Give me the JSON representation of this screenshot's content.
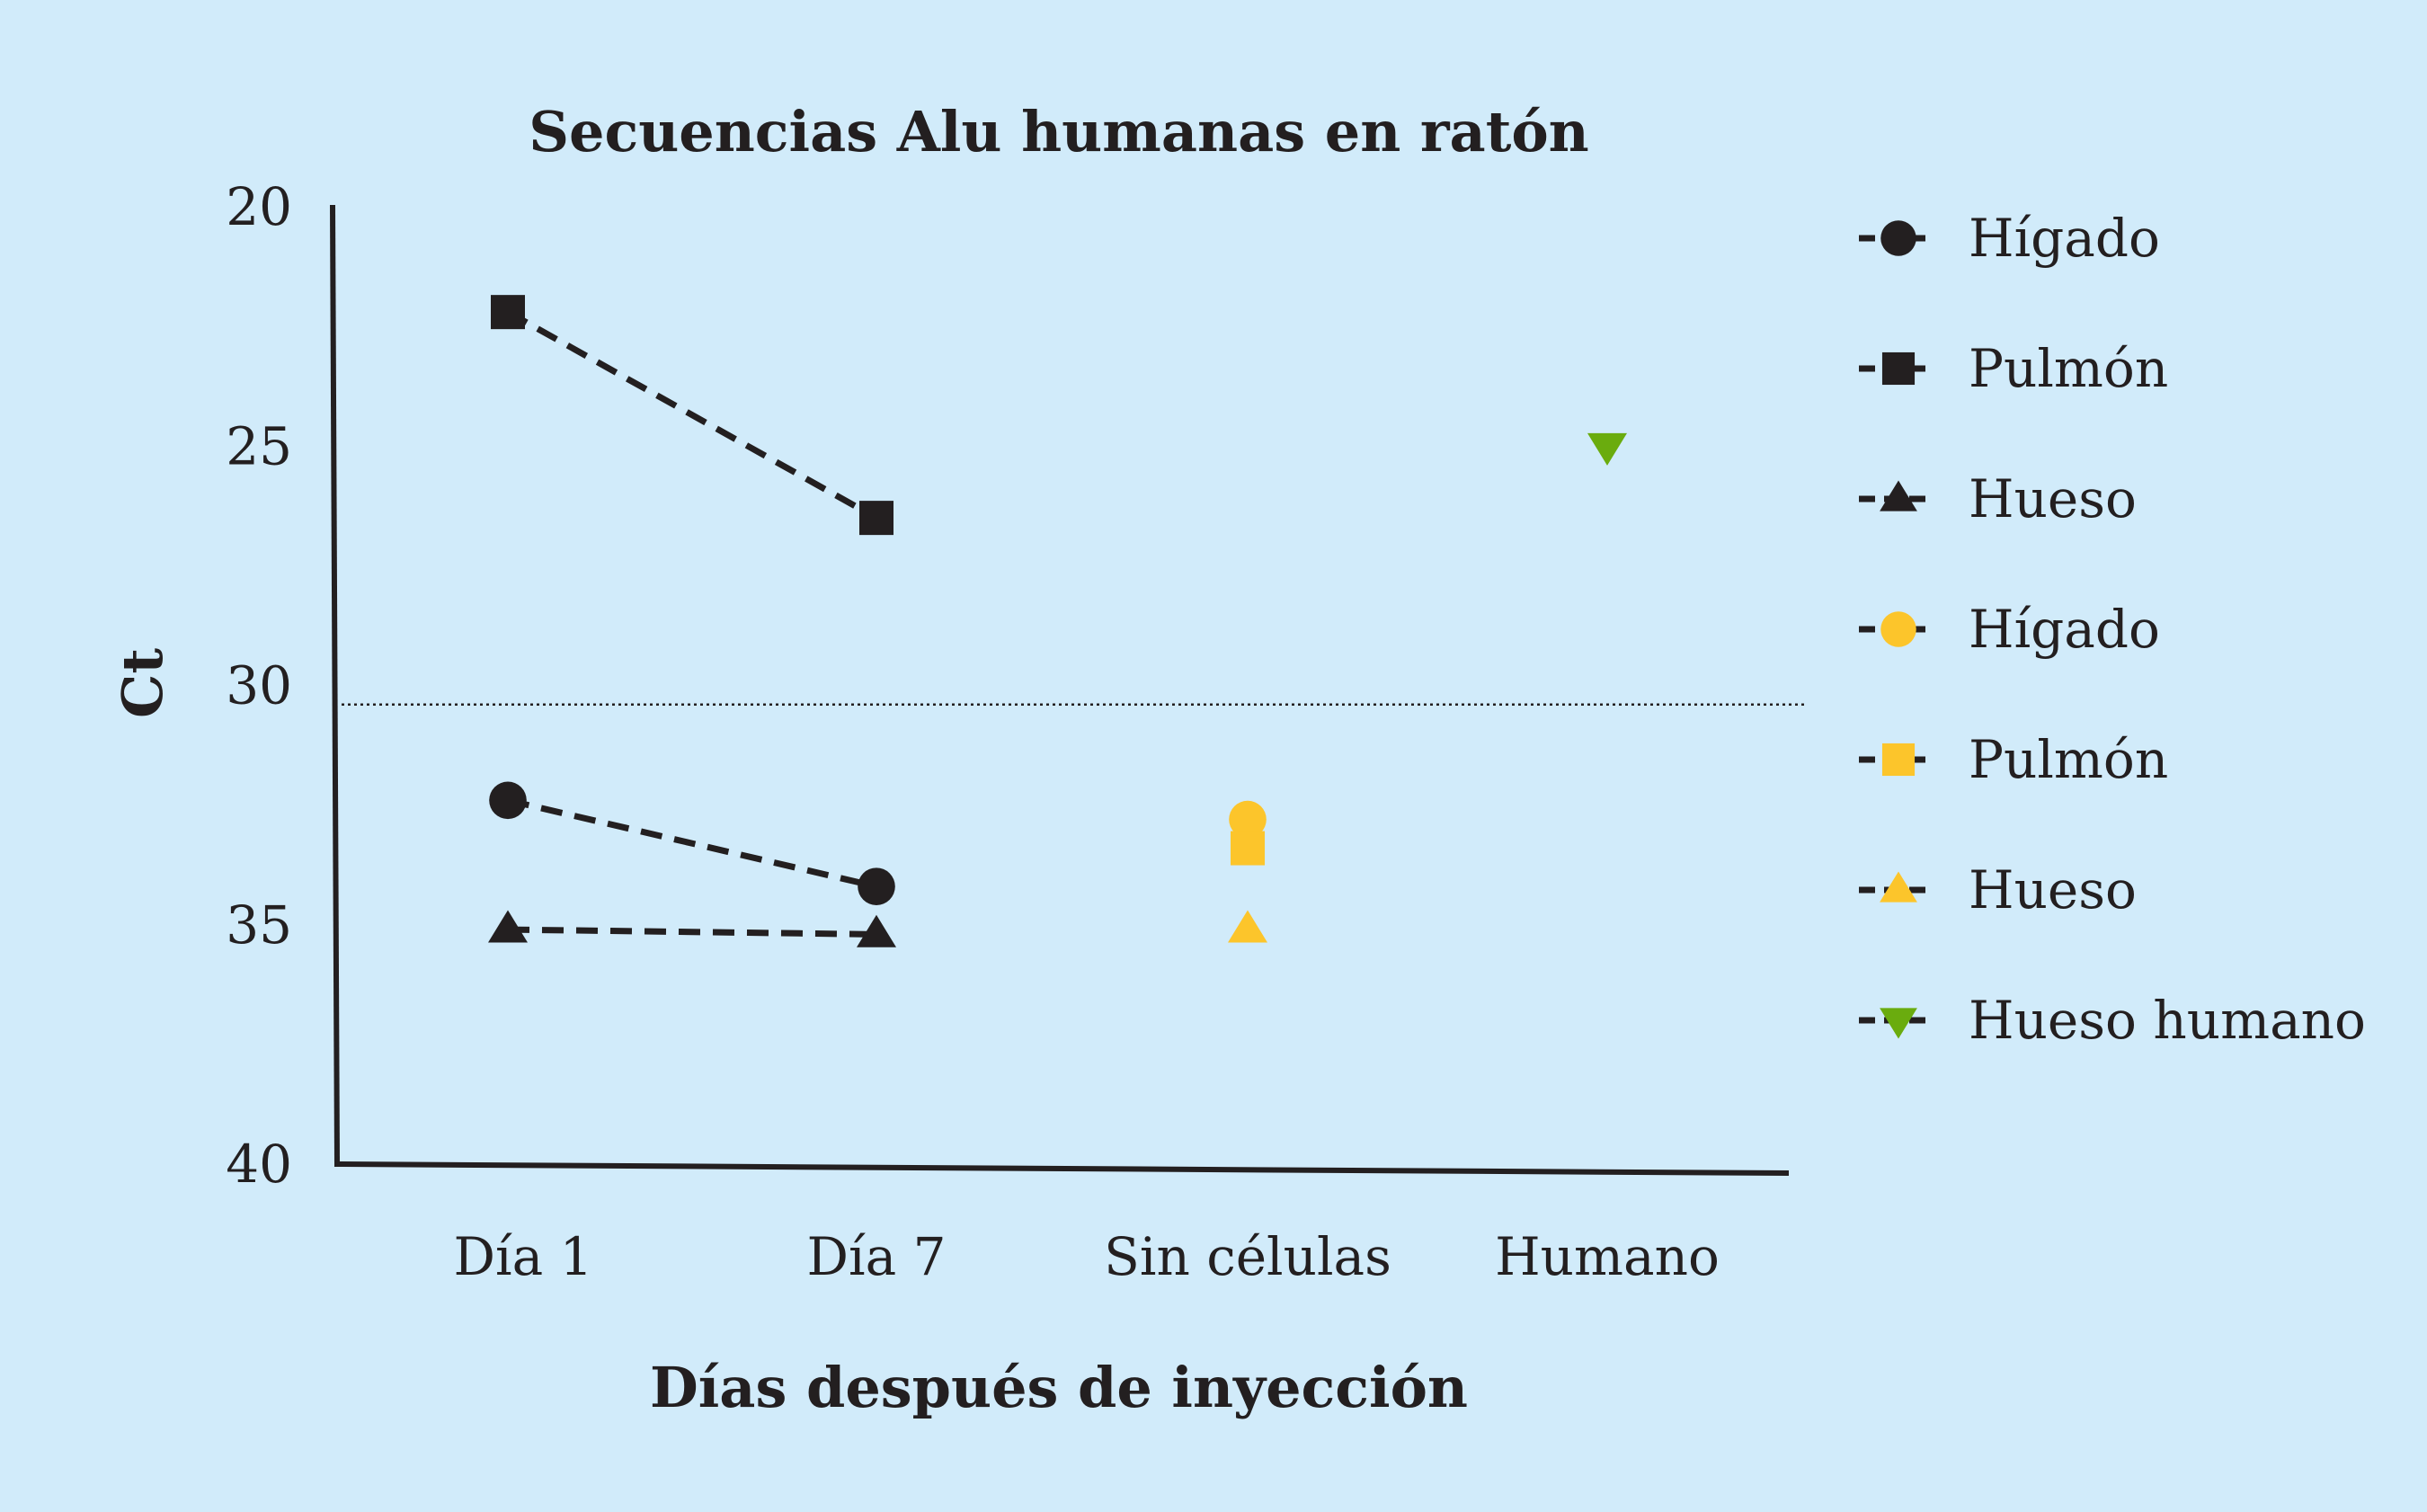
{
  "chart_data": {
    "type": "line",
    "title": "Secuencias Alu humanas en ratón",
    "xlabel": "Días después de inyección",
    "ylabel": "Ct",
    "categories": [
      "Día 1",
      "Día 7",
      "Sin células",
      "Humano"
    ],
    "y_ticks": [
      "20",
      "25",
      "30",
      "35",
      "40"
    ],
    "ylim": [
      20,
      40
    ],
    "y_inverted": true,
    "reference_line": {
      "y": 30.4,
      "style": "dotted"
    },
    "grid": false,
    "legend_position": "right",
    "series": [
      {
        "name": "Hígado",
        "marker": "circle",
        "color": "#231f20",
        "line": "dashed",
        "values": [
          32.4,
          34.2,
          null,
          null
        ]
      },
      {
        "name": "Pulmón",
        "marker": "square",
        "color": "#231f20",
        "line": "dashed",
        "values": [
          22.2,
          26.5,
          null,
          null
        ]
      },
      {
        "name": "Hueso",
        "marker": "triangle-up",
        "color": "#231f20",
        "line": "dashed",
        "values": [
          35.1,
          35.2,
          null,
          null
        ]
      },
      {
        "name": "Hígado",
        "marker": "circle",
        "color": "#fcc52b",
        "line": "none",
        "values": [
          null,
          null,
          32.8,
          null
        ]
      },
      {
        "name": "Pulmón",
        "marker": "square",
        "color": "#fcc52b",
        "line": "none",
        "values": [
          null,
          null,
          33.4,
          null
        ]
      },
      {
        "name": "Hueso",
        "marker": "triangle-up",
        "color": "#fcc52b",
        "line": "none",
        "values": [
          null,
          null,
          35.1,
          null
        ]
      },
      {
        "name": "Hueso humano",
        "marker": "triangle-down",
        "color": "#6aac0e",
        "line": "none",
        "values": [
          null,
          null,
          null,
          25.0
        ]
      }
    ]
  }
}
